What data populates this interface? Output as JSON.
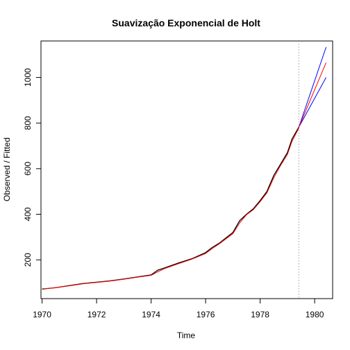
{
  "chart_data": {
    "type": "line",
    "title": "Suavização Exponencial de Holt",
    "xlabel": "Time",
    "ylabel": "Observed / Fitted",
    "xlim": [
      1969.96,
      1980.66
    ],
    "ylim": [
      30,
      1160
    ],
    "xticks": [
      1970,
      1972,
      1974,
      1976,
      1978,
      1980
    ],
    "yticks": [
      200,
      400,
      600,
      800,
      1000
    ],
    "grid": false,
    "legend": "none",
    "forecast_origin": 1979.42,
    "colors": {
      "observed": "#000000",
      "fitted": "#ff0000",
      "forecast": "#ff0000",
      "bounds": "#0000ff",
      "divider": "#9a9a9a"
    },
    "series": [
      {
        "role": "observed",
        "x": [
          1970.0,
          1970.5,
          1971.0,
          1971.5,
          1972.0,
          1972.5,
          1973.0,
          1973.5,
          1974.0,
          1974.25,
          1974.5,
          1975.0,
          1975.5,
          1976.0,
          1976.25,
          1976.5,
          1977.0,
          1977.25,
          1977.5,
          1977.75,
          1978.0,
          1978.25,
          1978.5,
          1978.75,
          1979.0,
          1979.17,
          1979.42
        ],
        "y": [
          72,
          78,
          87,
          96,
          102,
          108,
          116,
          125,
          134,
          155,
          165,
          186,
          205,
          232,
          255,
          273,
          320,
          372,
          400,
          424,
          460,
          500,
          570,
          620,
          670,
          730,
          782
        ]
      },
      {
        "role": "fitted",
        "x": [
          1970.08,
          1970.5,
          1971.0,
          1971.5,
          1972.0,
          1972.5,
          1973.0,
          1973.5,
          1974.0,
          1974.25,
          1974.5,
          1975.0,
          1975.5,
          1976.0,
          1976.25,
          1976.5,
          1977.0,
          1977.25,
          1977.5,
          1977.75,
          1978.0,
          1978.25,
          1978.5,
          1978.75,
          1979.0,
          1979.17,
          1979.42
        ],
        "y": [
          73,
          78,
          86,
          95,
          101,
          107,
          115,
          124,
          132,
          148,
          162,
          183,
          203,
          228,
          250,
          270,
          315,
          362,
          398,
          420,
          455,
          494,
          560,
          614,
          662,
          720,
          778
        ]
      },
      {
        "role": "forecast",
        "x": [
          1979.42,
          1980.42
        ],
        "y": [
          782,
          1065
        ]
      },
      {
        "role": "upper",
        "x": [
          1979.42,
          1980.42
        ],
        "y": [
          782,
          1133
        ]
      },
      {
        "role": "lower",
        "x": [
          1979.42,
          1980.42
        ],
        "y": [
          782,
          1000
        ]
      }
    ]
  }
}
